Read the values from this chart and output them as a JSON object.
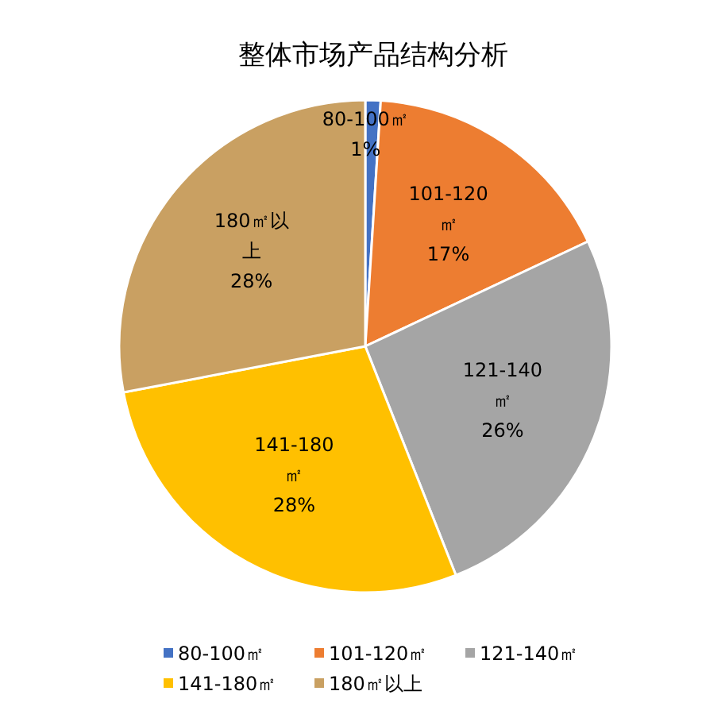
{
  "chart_data": {
    "type": "pie",
    "title": "整体市场产品结构分析",
    "categories": [
      "80-100㎡",
      "101-120㎡",
      "121-140㎡",
      "141-180㎡",
      "180㎡以上"
    ],
    "values": [
      1,
      17,
      26,
      28,
      28
    ],
    "colors": [
      "#4472c4",
      "#ed7d31",
      "#a5a5a5",
      "#ffc000",
      "#c9a062"
    ],
    "value_labels": [
      "1%",
      "17%",
      "26%",
      "28%",
      "28%"
    ],
    "legend": "bottom"
  }
}
